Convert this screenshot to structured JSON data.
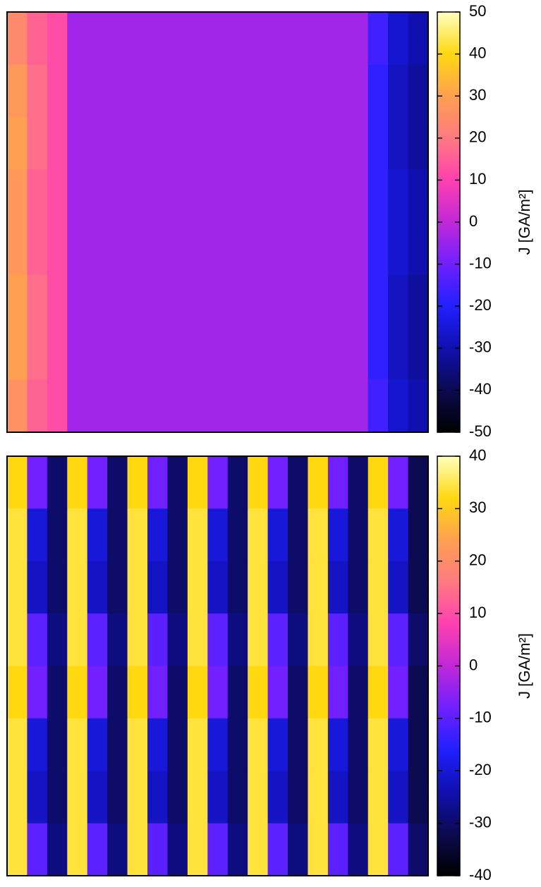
{
  "chart_data": [
    {
      "type": "heatmap",
      "colorbar_label": "J [GA/m²]",
      "zlim": [
        -50,
        50
      ],
      "zticks": [
        -50,
        -40,
        -30,
        -20,
        -10,
        0,
        10,
        20,
        30,
        40,
        50
      ],
      "colormap": [
        "#000000",
        "#0c0a50",
        "#1010b0",
        "#2020ff",
        "#7020ff",
        "#c028d8",
        "#ff40b0",
        "#ff7a80",
        "#ffa050",
        "#ffd810",
        "#ffffc0"
      ],
      "z": [
        [
          24,
          16,
          12,
          -4,
          -4,
          -4,
          -4,
          -4,
          -4,
          -4,
          -4,
          -4,
          -4,
          -4,
          -4,
          -4,
          -4,
          -4,
          -16,
          -26,
          -30
        ],
        [
          28,
          18,
          12,
          -4,
          -4,
          -4,
          -4,
          -4,
          -4,
          -4,
          -4,
          -4,
          -4,
          -4,
          -4,
          -4,
          -4,
          -4,
          -18,
          -28,
          -32
        ],
        [
          30,
          18,
          12,
          -4,
          -4,
          -4,
          -4,
          -4,
          -4,
          -4,
          -4,
          -4,
          -4,
          -4,
          -4,
          -4,
          -4,
          -4,
          -18,
          -28,
          -32
        ],
        [
          28,
          16,
          12,
          -4,
          -4,
          -4,
          -4,
          -4,
          -4,
          -4,
          -4,
          -4,
          -4,
          -4,
          -4,
          -4,
          -4,
          -4,
          -18,
          -26,
          -30
        ],
        [
          28,
          16,
          12,
          -4,
          -4,
          -4,
          -4,
          -4,
          -4,
          -4,
          -4,
          -4,
          -4,
          -4,
          -4,
          -4,
          -4,
          -4,
          -18,
          -26,
          -30
        ],
        [
          30,
          18,
          12,
          -4,
          -4,
          -4,
          -4,
          -4,
          -4,
          -4,
          -4,
          -4,
          -4,
          -4,
          -4,
          -4,
          -4,
          -4,
          -18,
          -28,
          -32
        ],
        [
          30,
          18,
          12,
          -4,
          -4,
          -4,
          -4,
          -4,
          -4,
          -4,
          -4,
          -4,
          -4,
          -4,
          -4,
          -4,
          -4,
          -4,
          -18,
          -28,
          -32
        ],
        [
          26,
          16,
          12,
          -4,
          -4,
          -4,
          -4,
          -4,
          -4,
          -4,
          -4,
          -4,
          -4,
          -4,
          -4,
          -4,
          -4,
          -4,
          -16,
          -26,
          -30
        ]
      ]
    },
    {
      "type": "heatmap",
      "colorbar_label": "J [GA/m²]",
      "zlim": [
        -40,
        40
      ],
      "zticks": [
        -40,
        -30,
        -20,
        -10,
        0,
        10,
        20,
        30,
        40
      ],
      "colormap": [
        "#000000",
        "#0c0a50",
        "#1010b0",
        "#2020ff",
        "#7020ff",
        "#c028d8",
        "#ff40b0",
        "#ff7a80",
        "#ffa050",
        "#ffd810",
        "#ffffc0"
      ],
      "z": [
        [
          32,
          -8,
          -30,
          32,
          -8,
          -30,
          32,
          -8,
          -30,
          32,
          -8,
          -30,
          32,
          -8,
          -30,
          32,
          -8,
          -30,
          32,
          -8,
          -32
        ],
        [
          34,
          -20,
          -30,
          34,
          -20,
          -30,
          34,
          -20,
          -30,
          34,
          -20,
          -30,
          34,
          -20,
          -30,
          34,
          -20,
          -30,
          34,
          -20,
          -32
        ],
        [
          34,
          -22,
          -30,
          34,
          -22,
          -30,
          34,
          -22,
          -30,
          34,
          -22,
          -30,
          34,
          -22,
          -30,
          34,
          -22,
          -30,
          34,
          -22,
          -32
        ],
        [
          34,
          -10,
          -28,
          34,
          -10,
          -28,
          34,
          -10,
          -28,
          34,
          -10,
          -28,
          34,
          -10,
          -28,
          34,
          -10,
          -28,
          34,
          -10,
          -30
        ],
        [
          32,
          -8,
          -30,
          32,
          -8,
          -30,
          32,
          -8,
          -30,
          32,
          -8,
          -30,
          32,
          -8,
          -30,
          32,
          -8,
          -30,
          32,
          -8,
          -32
        ],
        [
          34,
          -20,
          -30,
          34,
          -20,
          -30,
          34,
          -20,
          -30,
          34,
          -20,
          -30,
          34,
          -20,
          -30,
          34,
          -20,
          -30,
          34,
          -20,
          -32
        ],
        [
          34,
          -22,
          -30,
          34,
          -22,
          -30,
          34,
          -22,
          -30,
          34,
          -22,
          -30,
          34,
          -22,
          -30,
          34,
          -22,
          -30,
          34,
          -22,
          -32
        ],
        [
          34,
          -10,
          -28,
          34,
          -10,
          -28,
          34,
          -10,
          -28,
          34,
          -10,
          -28,
          34,
          -10,
          -28,
          34,
          -10,
          -28,
          34,
          -10,
          -30
        ]
      ]
    }
  ]
}
